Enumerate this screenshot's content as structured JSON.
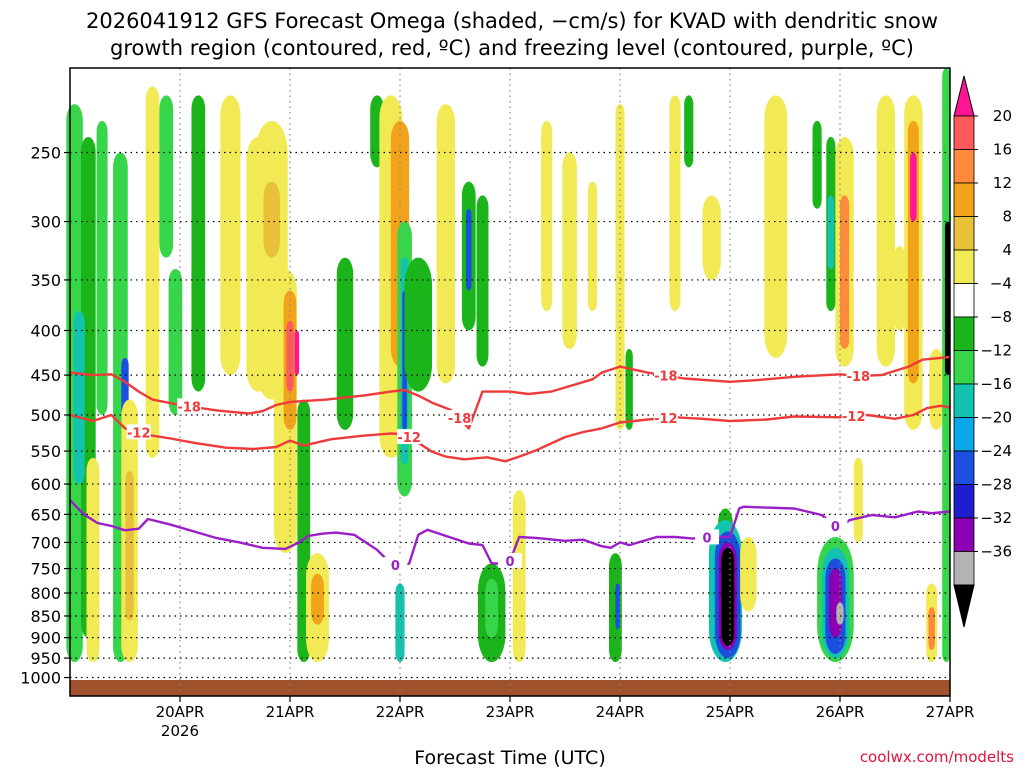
{
  "chart_data": {
    "type": "heatmap",
    "title_line1": "2026041912 GFS Forecast Omega (shaded, −cm/s) for KVAD with dendritic snow",
    "title_line2": "growth region (contoured, red, ºC) and freezing level (contoured, purple, ºC)",
    "xlabel": "Forecast Time (UTC)",
    "ylabel": "",
    "credit": "coolwx.com/modelts",
    "x_start_hour": -12,
    "x_end_hour": 180,
    "x_ticks": [
      {
        "hour": 12,
        "label": "20APR",
        "sublabel": "2026"
      },
      {
        "hour": 36,
        "label": "21APR",
        "sublabel": ""
      },
      {
        "hour": 60,
        "label": "22APR",
        "sublabel": ""
      },
      {
        "hour": 84,
        "label": "23APR",
        "sublabel": ""
      },
      {
        "hour": 108,
        "label": "24APR",
        "sublabel": ""
      },
      {
        "hour": 132,
        "label": "25APR",
        "sublabel": ""
      },
      {
        "hour": 156,
        "label": "26APR",
        "sublabel": ""
      },
      {
        "hour": 180,
        "label": "27APR",
        "sublabel": ""
      }
    ],
    "y_axis": {
      "scale": "log",
      "top_hpa": 200,
      "bottom_hpa": 1050,
      "ticks": [
        250,
        300,
        350,
        400,
        450,
        500,
        550,
        600,
        650,
        700,
        750,
        800,
        850,
        900,
        950,
        1000
      ]
    },
    "colorbar": {
      "labels": [
        "20",
        "16",
        "12",
        "8",
        "4",
        "−4",
        "−8",
        "−12",
        "−16",
        "−20",
        "−24",
        "−28",
        "−32",
        "−36"
      ],
      "colors": [
        "#ff5a5a",
        "#ff8a3c",
        "#f2a31a",
        "#e8c03a",
        "#f1ea55",
        "#ffffff",
        "#1bb41b",
        "#37d64a",
        "#12c3b0",
        "#0aa8e8",
        "#1a4fe0",
        "#1e1ecc",
        "#8c00b4",
        "#b3b3b3"
      ],
      "top_color": "#ff1493",
      "bottom_color": "#000000"
    },
    "contour_labels": {
      "dgz_cold": "-18",
      "dgz_warm": "-12",
      "freezing": "0"
    },
    "series": [
      {
        "name": "-18 °C isotherm",
        "color": "#ee3a3a",
        "hours": [
          -12,
          -7,
          -3,
          0,
          3,
          6,
          12,
          20,
          27,
          30,
          33,
          36,
          44,
          52,
          58,
          61,
          64,
          67,
          71,
          73,
          75,
          78,
          84,
          88,
          93,
          96,
          102,
          104,
          108,
          114,
          122,
          132,
          138,
          146,
          156,
          160,
          165,
          168,
          171,
          174,
          180
        ],
        "pressures": [
          447,
          450,
          449,
          458,
          470,
          480,
          487,
          494,
          498,
          495,
          487,
          483,
          480,
          475,
          470,
          468,
          475,
          484,
          493,
          504,
          518,
          470,
          470,
          473,
          470,
          465,
          455,
          447,
          440,
          447,
          454,
          458,
          456,
          452,
          449,
          451,
          450,
          445,
          440,
          432,
          429
        ]
      },
      {
        "name": "-12 °C isotherm",
        "color": "#ee3a3a",
        "hours": [
          -12,
          -7,
          -3,
          0,
          5,
          10,
          15,
          22,
          28,
          33,
          36,
          39,
          45,
          52,
          58,
          61,
          64,
          67,
          70,
          74,
          79,
          83,
          86,
          90,
          96,
          100,
          104,
          108,
          114,
          120,
          126,
          132,
          140,
          146,
          156,
          162,
          168,
          172,
          175,
          178,
          180
        ],
        "pressures": [
          500,
          508,
          500,
          518,
          527,
          532,
          538,
          545,
          547,
          544,
          535,
          542,
          533,
          528,
          525,
          526,
          538,
          551,
          558,
          562,
          559,
          565,
          558,
          548,
          530,
          523,
          518,
          510,
          506,
          503,
          505,
          508,
          506,
          502,
          503,
          500,
          505,
          500,
          491,
          488,
          490
        ]
      },
      {
        "name": "0 °C freezing level",
        "color": "#9b1fc8",
        "hours": [
          -12,
          -9,
          -6,
          -3,
          0,
          3,
          5,
          10,
          20,
          25,
          30,
          35,
          38,
          40,
          43,
          46,
          50,
          55,
          58,
          60,
          62,
          64,
          66,
          70,
          75,
          78,
          80,
          82,
          84,
          86,
          90,
          96,
          100,
          104,
          106,
          108,
          110,
          116,
          120,
          124,
          128,
          132,
          134,
          135,
          138,
          146,
          152,
          155,
          156,
          158,
          163,
          168,
          173,
          176,
          180
        ],
        "pressures": [
          626,
          650,
          665,
          670,
          678,
          675,
          658,
          668,
          692,
          700,
          710,
          712,
          700,
          688,
          684,
          682,
          686,
          714,
          740,
          746,
          740,
          686,
          677,
          688,
          702,
          705,
          740,
          740,
          735,
          690,
          692,
          697,
          695,
          707,
          710,
          700,
          705,
          690,
          690,
          693,
          690,
          690,
          640,
          637,
          638,
          640,
          651,
          670,
          676,
          660,
          651,
          655,
          645,
          648,
          645
        ]
      }
    ],
    "shading_regions": [
      {
        "hour": -11,
        "width_h": 1.8,
        "p_top": 220,
        "p_bottom": 960,
        "color": "#37d64a"
      },
      {
        "hour": -8,
        "width_h": 1.6,
        "p_top": 240,
        "p_bottom": 900,
        "color": "#1bb41b"
      },
      {
        "hour": -5,
        "width_h": 1.2,
        "p_top": 230,
        "p_bottom": 500,
        "color": "#37d64a"
      },
      {
        "hour": -10,
        "width_h": 1.2,
        "p_top": 380,
        "p_bottom": 600,
        "color": "#12c3b0"
      },
      {
        "hour": -1,
        "width_h": 1.6,
        "p_top": 250,
        "p_bottom": 960,
        "color": "#37d64a"
      },
      {
        "hour": 0,
        "width_h": 0.8,
        "p_top": 430,
        "p_bottom": 560,
        "color": "#1a4fe0"
      },
      {
        "hour": -7,
        "width_h": 1.4,
        "p_top": 560,
        "p_bottom": 960,
        "color": "#f1ea55"
      },
      {
        "hour": 1,
        "width_h": 1.8,
        "p_top": 480,
        "p_bottom": 960,
        "color": "#f1ea55"
      },
      {
        "hour": 1,
        "width_h": 0.9,
        "p_top": 580,
        "p_bottom": 860,
        "color": "#e8c03a"
      },
      {
        "hour": 6,
        "width_h": 1.5,
        "p_top": 210,
        "p_bottom": 560,
        "color": "#f1ea55"
      },
      {
        "hour": 9,
        "width_h": 1.5,
        "p_top": 215,
        "p_bottom": 330,
        "color": "#37d64a"
      },
      {
        "hour": 11,
        "width_h": 1.5,
        "p_top": 340,
        "p_bottom": 500,
        "color": "#37d64a"
      },
      {
        "hour": 16,
        "width_h": 1.5,
        "p_top": 215,
        "p_bottom": 470,
        "color": "#1bb41b"
      },
      {
        "hour": 23,
        "width_h": 2.2,
        "p_top": 215,
        "p_bottom": 450,
        "color": "#f1ea55"
      },
      {
        "hour": 29,
        "width_h": 2.5,
        "p_top": 240,
        "p_bottom": 470,
        "color": "#f1ea55"
      },
      {
        "hour": 32,
        "width_h": 3.5,
        "p_top": 230,
        "p_bottom": 480,
        "color": "#f1ea55"
      },
      {
        "hour": 32,
        "width_h": 1.8,
        "p_top": 270,
        "p_bottom": 330,
        "color": "#e8c03a"
      },
      {
        "hour": 35,
        "width_h": 2.5,
        "p_top": 340,
        "p_bottom": 720,
        "color": "#f1ea55"
      },
      {
        "hour": 36,
        "width_h": 1.4,
        "p_top": 360,
        "p_bottom": 520,
        "color": "#f2a31a"
      },
      {
        "hour": 36,
        "width_h": 0.8,
        "p_top": 390,
        "p_bottom": 470,
        "color": "#ff5a5a"
      },
      {
        "hour": 37.5,
        "width_h": 0.5,
        "p_top": 400,
        "p_bottom": 450,
        "color": "#ff1493"
      },
      {
        "hour": 39,
        "width_h": 1.4,
        "p_top": 480,
        "p_bottom": 960,
        "color": "#1bb41b"
      },
      {
        "hour": 42,
        "width_h": 2.5,
        "p_top": 720,
        "p_bottom": 960,
        "color": "#f1ea55"
      },
      {
        "hour": 42,
        "width_h": 1.4,
        "p_top": 760,
        "p_bottom": 870,
        "color": "#f2a31a"
      },
      {
        "hour": 48,
        "width_h": 1.8,
        "p_top": 330,
        "p_bottom": 520,
        "color": "#1bb41b"
      },
      {
        "hour": 55,
        "width_h": 1.5,
        "p_top": 215,
        "p_bottom": 260,
        "color": "#1bb41b"
      },
      {
        "hour": 58,
        "width_h": 2.5,
        "p_top": 215,
        "p_bottom": 560,
        "color": "#f1ea55"
      },
      {
        "hour": 60,
        "width_h": 2.0,
        "p_top": 230,
        "p_bottom": 440,
        "color": "#f2a31a"
      },
      {
        "hour": 61,
        "width_h": 1.6,
        "p_top": 300,
        "p_bottom": 620,
        "color": "#37d64a"
      },
      {
        "hour": 61,
        "width_h": 0.8,
        "p_top": 330,
        "p_bottom": 570,
        "color": "#12c3b0"
      },
      {
        "hour": 61,
        "width_h": 0.5,
        "p_top": 360,
        "p_bottom": 520,
        "color": "#1a4fe0"
      },
      {
        "hour": 64,
        "width_h": 3.0,
        "p_top": 330,
        "p_bottom": 470,
        "color": "#1bb41b"
      },
      {
        "hour": 60,
        "width_h": 1.0,
        "p_top": 780,
        "p_bottom": 960,
        "color": "#12c3b0"
      },
      {
        "hour": 70,
        "width_h": 2.0,
        "p_top": 220,
        "p_bottom": 460,
        "color": "#f1ea55"
      },
      {
        "hour": 75,
        "width_h": 1.5,
        "p_top": 270,
        "p_bottom": 400,
        "color": "#1bb41b"
      },
      {
        "hour": 75,
        "width_h": 0.6,
        "p_top": 290,
        "p_bottom": 360,
        "color": "#1a4fe0"
      },
      {
        "hour": 78,
        "width_h": 1.3,
        "p_top": 280,
        "p_bottom": 440,
        "color": "#1bb41b"
      },
      {
        "hour": 80,
        "width_h": 3.0,
        "p_top": 740,
        "p_bottom": 960,
        "color": "#1bb41b"
      },
      {
        "hour": 80,
        "width_h": 1.4,
        "p_top": 770,
        "p_bottom": 900,
        "color": "#37d64a"
      },
      {
        "hour": 86,
        "width_h": 1.4,
        "p_top": 610,
        "p_bottom": 960,
        "color": "#f1ea55"
      },
      {
        "hour": 92,
        "width_h": 1.2,
        "p_top": 230,
        "p_bottom": 380,
        "color": "#f1ea55"
      },
      {
        "hour": 97,
        "width_h": 1.6,
        "p_top": 250,
        "p_bottom": 420,
        "color": "#f1ea55"
      },
      {
        "hour": 102,
        "width_h": 1.0,
        "p_top": 270,
        "p_bottom": 380,
        "color": "#f1ea55"
      },
      {
        "hour": 107,
        "width_h": 1.4,
        "p_top": 720,
        "p_bottom": 960,
        "color": "#1bb41b"
      },
      {
        "hour": 107.5,
        "width_h": 0.5,
        "p_top": 780,
        "p_bottom": 880,
        "color": "#1a4fe0"
      },
      {
        "hour": 108,
        "width_h": 1.0,
        "p_top": 220,
        "p_bottom": 520,
        "color": "#f1ea55"
      },
      {
        "hour": 110,
        "width_h": 0.8,
        "p_top": 420,
        "p_bottom": 520,
        "color": "#1bb41b"
      },
      {
        "hour": 120,
        "width_h": 1.2,
        "p_top": 215,
        "p_bottom": 380,
        "color": "#f1ea55"
      },
      {
        "hour": 123,
        "width_h": 1.0,
        "p_top": 215,
        "p_bottom": 260,
        "color": "#1bb41b"
      },
      {
        "hour": 128,
        "width_h": 2.0,
        "p_top": 280,
        "p_bottom": 350,
        "color": "#f1ea55"
      },
      {
        "hour": 131,
        "width_h": 1.6,
        "p_top": 640,
        "p_bottom": 960,
        "color": "#1bb41b"
      },
      {
        "hour": 131,
        "width_h": 3.6,
        "p_top": 660,
        "p_bottom": 960,
        "color": "#12c3b0"
      },
      {
        "hour": 131.5,
        "width_h": 2.8,
        "p_top": 680,
        "p_bottom": 950,
        "color": "#1a4fe0"
      },
      {
        "hour": 131.5,
        "width_h": 2.0,
        "p_top": 700,
        "p_bottom": 930,
        "color": "#8c00b4"
      },
      {
        "hour": 131.5,
        "width_h": 1.4,
        "p_top": 710,
        "p_bottom": 920,
        "color": "#000000"
      },
      {
        "hour": 136,
        "width_h": 1.8,
        "p_top": 690,
        "p_bottom": 840,
        "color": "#f1ea55"
      },
      {
        "hour": 142,
        "width_h": 2.5,
        "p_top": 215,
        "p_bottom": 430,
        "color": "#f1ea55"
      },
      {
        "hour": 151,
        "width_h": 1.0,
        "p_top": 230,
        "p_bottom": 290,
        "color": "#1bb41b"
      },
      {
        "hour": 154,
        "width_h": 1.0,
        "p_top": 240,
        "p_bottom": 380,
        "color": "#1bb41b"
      },
      {
        "hour": 154,
        "width_h": 0.7,
        "p_top": 280,
        "p_bottom": 340,
        "color": "#12c3b0"
      },
      {
        "hour": 155,
        "width_h": 4.0,
        "p_top": 690,
        "p_bottom": 960,
        "color": "#37d64a"
      },
      {
        "hour": 155,
        "width_h": 3.0,
        "p_top": 710,
        "p_bottom": 950,
        "color": "#12c3b0"
      },
      {
        "hour": 155,
        "width_h": 2.2,
        "p_top": 730,
        "p_bottom": 940,
        "color": "#1a4fe0"
      },
      {
        "hour": 155,
        "width_h": 1.4,
        "p_top": 750,
        "p_bottom": 900,
        "color": "#8c00b4"
      },
      {
        "hour": 156,
        "width_h": 0.8,
        "p_top": 820,
        "p_bottom": 870,
        "color": "#b3b3b3"
      },
      {
        "hour": 157,
        "width_h": 2.0,
        "p_top": 240,
        "p_bottom": 440,
        "color": "#f1ea55"
      },
      {
        "hour": 157,
        "width_h": 1.0,
        "p_top": 280,
        "p_bottom": 420,
        "color": "#ff8a3c"
      },
      {
        "hour": 160,
        "width_h": 1.0,
        "p_top": 560,
        "p_bottom": 700,
        "color": "#f1ea55"
      },
      {
        "hour": 166,
        "width_h": 2.0,
        "p_top": 215,
        "p_bottom": 440,
        "color": "#f1ea55"
      },
      {
        "hour": 169,
        "width_h": 1.2,
        "p_top": 320,
        "p_bottom": 400,
        "color": "#f1ea55"
      },
      {
        "hour": 172,
        "width_h": 2.0,
        "p_top": 215,
        "p_bottom": 520,
        "color": "#f1ea55"
      },
      {
        "hour": 172,
        "width_h": 1.2,
        "p_top": 230,
        "p_bottom": 460,
        "color": "#f2a31a"
      },
      {
        "hour": 172,
        "width_h": 0.7,
        "p_top": 250,
        "p_bottom": 300,
        "color": "#ff1493"
      },
      {
        "hour": 177,
        "width_h": 1.5,
        "p_top": 420,
        "p_bottom": 520,
        "color": "#f1ea55"
      },
      {
        "hour": 176,
        "width_h": 1.2,
        "p_top": 780,
        "p_bottom": 960,
        "color": "#f1ea55"
      },
      {
        "hour": 176,
        "width_h": 0.7,
        "p_top": 830,
        "p_bottom": 930,
        "color": "#ff8a3c"
      },
      {
        "hour": 179.2,
        "width_h": 0.9,
        "p_top": 200,
        "p_bottom": 960,
        "color": "#37d64a"
      },
      {
        "hour": 179.5,
        "width_h": 0.6,
        "p_top": 300,
        "p_bottom": 450,
        "color": "#000000"
      }
    ]
  }
}
